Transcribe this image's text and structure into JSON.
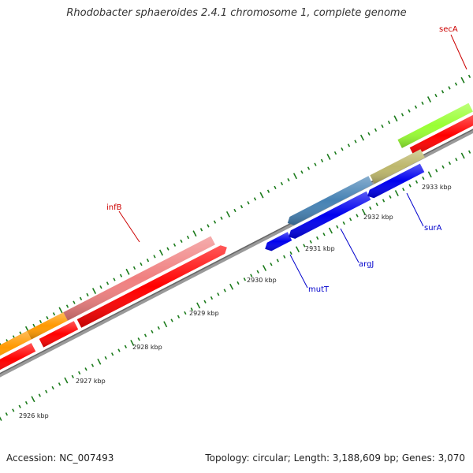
{
  "map": {
    "title": "Rhodobacter sphaeroides 2.4.1 chromosome 1, complete genome",
    "accession_label": "Accession: NC_007493",
    "summary_label": "Topology: circular; Length: 3,188,609 bp; Genes: 3,070",
    "ticks": [
      {
        "label": "2926 kbp"
      },
      {
        "label": "2927 kbp"
      },
      {
        "label": "2928 kbp"
      },
      {
        "label": "2929 kbp"
      },
      {
        "label": "2930 kbp"
      },
      {
        "label": "2931 kbp"
      },
      {
        "label": "2932 kbp"
      },
      {
        "label": "2933 kbp"
      }
    ],
    "genes": [
      {
        "name": "secA",
        "color": "#cc0000"
      },
      {
        "name": "infB",
        "color": "#cc0000"
      },
      {
        "name": "mutT",
        "color": "#0000cc"
      },
      {
        "name": "argJ",
        "color": "#0000cc"
      },
      {
        "name": "surA",
        "color": "#0000cc"
      }
    ],
    "colors": {
      "backbone": "#8c8c8c",
      "tick": "#1a7a1a",
      "cds_red": "#ff0000",
      "cds_pink": "#f08080",
      "cds_orange": "#ff9900",
      "cds_blue": "#0000ee",
      "cds_steelblue": "#4682b4",
      "cds_khaki": "#bdb76b",
      "cds_lime": "#99ff33"
    }
  }
}
